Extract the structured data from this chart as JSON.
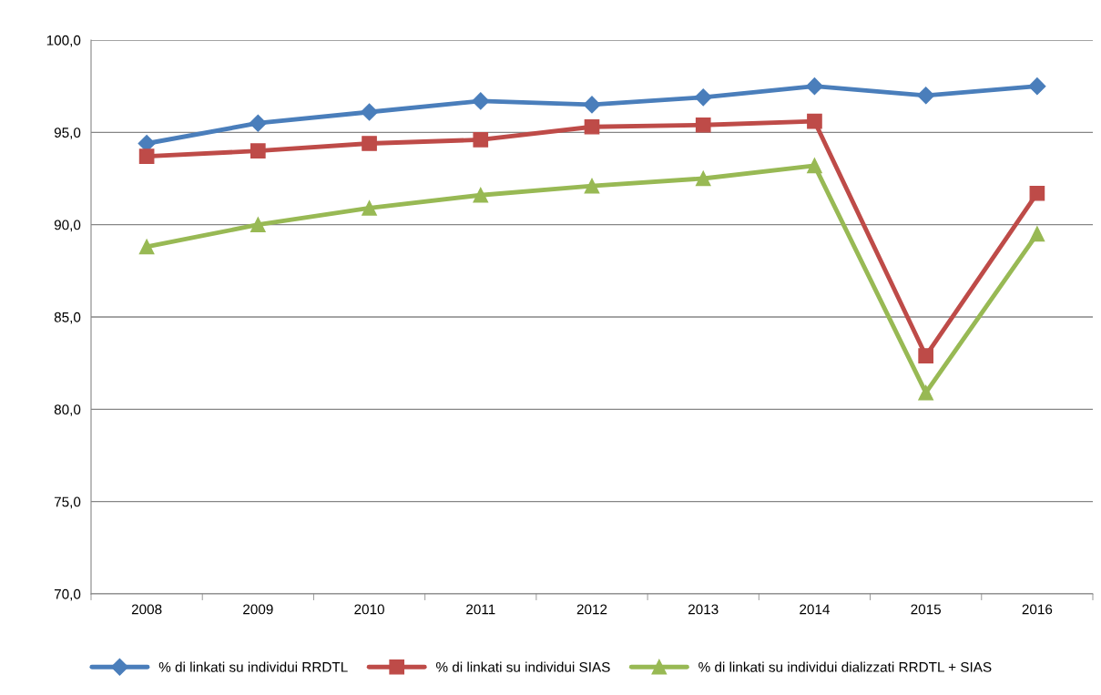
{
  "chart_data": {
    "type": "line",
    "categories": [
      "2008",
      "2009",
      "2010",
      "2011",
      "2012",
      "2013",
      "2014",
      "2015",
      "2016"
    ],
    "series": [
      {
        "name": "% di linkati su individui RRDTL",
        "color": "#4a7ebb",
        "marker": "diamond",
        "values": [
          94.4,
          95.5,
          96.1,
          96.7,
          96.5,
          96.9,
          97.5,
          97.0,
          97.5
        ]
      },
      {
        "name": "% di linkati su individui SIAS",
        "color": "#be4b48",
        "marker": "square",
        "values": [
          93.7,
          94.0,
          94.4,
          94.6,
          95.3,
          95.4,
          95.6,
          82.9,
          91.7
        ]
      },
      {
        "name": "% di linkati su individui dializzati RRDTL + SIAS",
        "color": "#98b954",
        "marker": "triangle",
        "values": [
          88.8,
          90.0,
          90.9,
          91.6,
          92.1,
          92.5,
          93.2,
          80.9,
          89.5
        ]
      }
    ],
    "ylim": [
      70,
      100
    ],
    "yticks": [
      {
        "value": 70,
        "label": "70,0"
      },
      {
        "value": 75,
        "label": "75,0"
      },
      {
        "value": 80,
        "label": "80,0"
      },
      {
        "value": 85,
        "label": "85,0"
      },
      {
        "value": 90,
        "label": "90,0"
      },
      {
        "value": 95,
        "label": "95,0"
      },
      {
        "value": 100,
        "label": "100,0"
      }
    ],
    "grid": "y",
    "legend": "bottom",
    "line_style": "solid"
  }
}
